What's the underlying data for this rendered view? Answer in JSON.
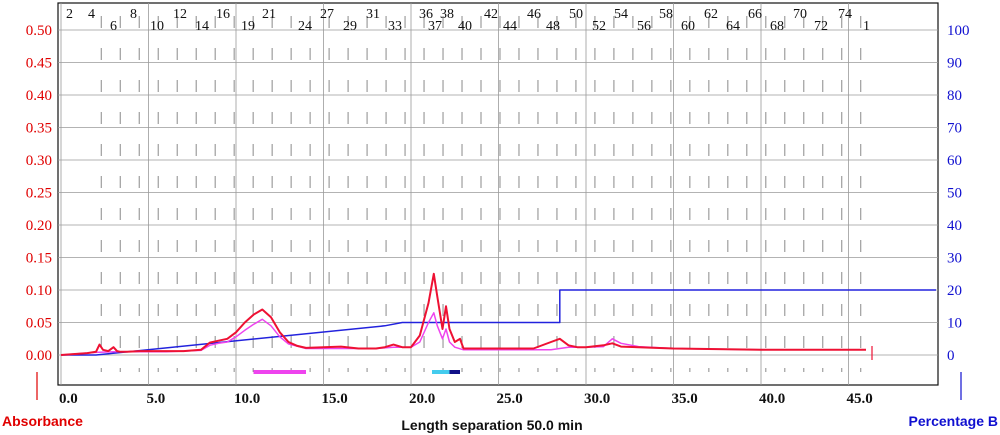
{
  "chart_data": {
    "type": "line",
    "xlabel": "Length separation 50.0 min",
    "ylabel_left": "Absorbance",
    "ylabel_right": "Percentage B",
    "xlim": [
      0,
      50
    ],
    "ylim_left": [
      -0.025,
      0.53
    ],
    "ylim_right": [
      -5,
      106
    ],
    "grid": true,
    "x_ticks": [
      "0.0",
      "5.0",
      "10.0",
      "15.0",
      "20.0",
      "25.0",
      "30.0",
      "35.0",
      "40.0",
      "45.0"
    ],
    "y_ticks_left": [
      "0.00",
      "0.05",
      "0.10",
      "0.15",
      "0.20",
      "0.25",
      "0.30",
      "0.35",
      "0.40",
      "0.45",
      "0.50"
    ],
    "y_ticks_right": [
      "0",
      "10",
      "20",
      "30",
      "40",
      "50",
      "60",
      "70",
      "80",
      "90",
      "100"
    ],
    "fraction_labels_top": [
      "2",
      "4",
      "8",
      "12",
      "16",
      "21",
      "27",
      "31",
      "36",
      "38",
      "42",
      "46",
      "50",
      "54",
      "58",
      "62",
      "66",
      "70",
      "74"
    ],
    "fraction_labels_bottom": [
      "6",
      "10",
      "14",
      "19",
      "24",
      "29",
      "33",
      "37",
      "40",
      "44",
      "48",
      "52",
      "56",
      "60",
      "64",
      "68",
      "72",
      "1"
    ],
    "colors": {
      "absorbance_a": "#ee1133",
      "absorbance_b": "#ee44ee",
      "gradient": "#2222dd",
      "left_axis": "#e00000",
      "right_axis": "#1010d0"
    },
    "series": [
      {
        "key": "absorbance_a",
        "axis": "left",
        "x": [
          0,
          1.5,
          2.0,
          2.2,
          2.4,
          2.7,
          3.0,
          3.2,
          3.4,
          3.7,
          4.5,
          6,
          7,
          8,
          8.5,
          9,
          9.5,
          10,
          10.5,
          11,
          11.5,
          12,
          12.5,
          13,
          13.5,
          14,
          15,
          16,
          17,
          18,
          18.5,
          19,
          19.5,
          20,
          20.5,
          21,
          21.3,
          21.5,
          21.8,
          22,
          22.2,
          22.5,
          22.8,
          23,
          23.5,
          24,
          25,
          26,
          27,
          28,
          28.5,
          29,
          29.5,
          30,
          31,
          31.5,
          32,
          33,
          35,
          40,
          46
        ],
        "y": [
          0,
          0.003,
          0.005,
          0.016,
          0.008,
          0.006,
          0.012,
          0.006,
          0.005,
          0.005,
          0.006,
          0.006,
          0.006,
          0.008,
          0.019,
          0.022,
          0.025,
          0.035,
          0.05,
          0.062,
          0.07,
          0.058,
          0.035,
          0.02,
          0.014,
          0.011,
          0.012,
          0.013,
          0.01,
          0.01,
          0.012,
          0.016,
          0.012,
          0.012,
          0.03,
          0.08,
          0.125,
          0.09,
          0.04,
          0.075,
          0.04,
          0.02,
          0.025,
          0.01,
          0.01,
          0.01,
          0.01,
          0.01,
          0.01,
          0.02,
          0.025,
          0.015,
          0.012,
          0.012,
          0.015,
          0.018,
          0.013,
          0.012,
          0.01,
          0.008,
          0.008
        ]
      },
      {
        "key": "absorbance_b",
        "axis": "left",
        "x": [
          0,
          2,
          3,
          4.5,
          6,
          8,
          8.5,
          9,
          9.5,
          10,
          10.5,
          11,
          11.5,
          12,
          12.5,
          13,
          14,
          16,
          18,
          19,
          20,
          20.5,
          21,
          21.3,
          21.5,
          21.8,
          22,
          22.2,
          22.5,
          23,
          25,
          28,
          29,
          30,
          31,
          31.5,
          32,
          33,
          35,
          40,
          46
        ],
        "y": [
          0,
          0.004,
          0.005,
          0.005,
          0.005,
          0.007,
          0.015,
          0.018,
          0.02,
          0.028,
          0.038,
          0.047,
          0.055,
          0.045,
          0.028,
          0.017,
          0.01,
          0.01,
          0.01,
          0.012,
          0.012,
          0.02,
          0.05,
          0.065,
          0.045,
          0.025,
          0.04,
          0.02,
          0.012,
          0.008,
          0.008,
          0.008,
          0.012,
          0.012,
          0.013,
          0.025,
          0.018,
          0.013,
          0.01,
          0.008,
          0.008
        ]
      },
      {
        "key": "gradient",
        "axis": "right",
        "x": [
          0,
          2,
          18.5,
          19.5,
          20.5,
          28.5,
          28.5,
          50
        ],
        "y": [
          0,
          0,
          9,
          10,
          10,
          10,
          20,
          20
        ]
      }
    ],
    "fraction_marks": [
      {
        "x_start": 11.0,
        "x_end": 14.0,
        "color": "#ee44ee"
      },
      {
        "x_start": 21.2,
        "x_end": 22.2,
        "color": "#44ccee"
      },
      {
        "x_start": 22.2,
        "x_end": 22.8,
        "color": "#111188"
      }
    ]
  }
}
